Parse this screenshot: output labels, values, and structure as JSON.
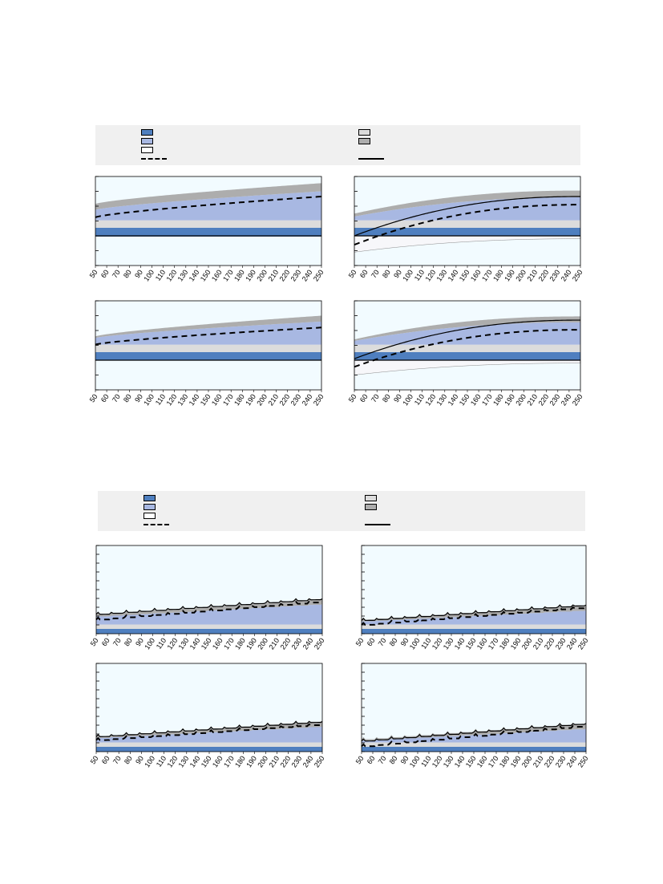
{
  "colors": {
    "plot_bg": "#f2fbff",
    "band_dark_blue": "#4f7fbf",
    "band_light_blue": "#a8b8e2",
    "band_light_gray": "#dcdcdc",
    "band_dark_gray": "#adadad",
    "band_white": "#f7f7fa",
    "legend_bg": "#f0f0f0"
  },
  "legends": [
    {
      "items": [
        {
          "swatch": "dark-blue",
          "label": ""
        },
        {
          "swatch": "light-blue",
          "label": ""
        },
        {
          "swatch": "white",
          "label": ""
        },
        {
          "swatch": "dashed-line",
          "label": ""
        },
        {
          "swatch": "light-gray",
          "label": ""
        },
        {
          "swatch": "dark-gray",
          "label": ""
        },
        {
          "swatch": "solid-line",
          "label": ""
        }
      ]
    },
    {
      "items": [
        {
          "swatch": "dark-blue",
          "label": ""
        },
        {
          "swatch": "light-blue",
          "label": ""
        },
        {
          "swatch": "white",
          "label": ""
        },
        {
          "swatch": "dashed-line",
          "label": ""
        },
        {
          "swatch": "light-gray",
          "label": ""
        },
        {
          "swatch": "dark-gray",
          "label": ""
        },
        {
          "swatch": "solid-line",
          "label": ""
        }
      ]
    }
  ],
  "chart_data": [
    {
      "type": "area",
      "panel": "top-left-1",
      "x_ticks": [
        50,
        60,
        70,
        80,
        90,
        100,
        110,
        120,
        130,
        140,
        150,
        160,
        170,
        180,
        190,
        200,
        210,
        220,
        230,
        240,
        250
      ],
      "xlim": [
        50,
        250
      ],
      "ylim": [
        -2,
        4
      ],
      "y_tick_step": 1,
      "zero_line": true,
      "style": "smooth",
      "series": [
        {
          "role": "dark-blue-band",
          "lower": [
            -0.05,
            -0.05
          ],
          "upper": [
            0.55,
            0.55
          ]
        },
        {
          "role": "light-gray-band",
          "lower": [
            0.55,
            0.55
          ],
          "upper": [
            1.05,
            1.05
          ]
        },
        {
          "role": "light-blue-band",
          "lower": [
            1.05,
            1.05
          ],
          "upper_start": 1.75,
          "upper_end": 3.0
        },
        {
          "role": "dark-gray-band",
          "lower_start": 1.75,
          "lower_end": 3.0,
          "upper_start": 2.15,
          "upper_end": 3.55
        },
        {
          "role": "dashed-line",
          "start": 1.25,
          "end": 2.65
        }
      ]
    },
    {
      "type": "area",
      "panel": "top-right-1",
      "x_ticks": [
        50,
        60,
        70,
        80,
        90,
        100,
        110,
        120,
        130,
        140,
        150,
        160,
        170,
        180,
        190,
        200,
        210,
        220,
        230,
        240,
        250
      ],
      "xlim": [
        50,
        250
      ],
      "ylim": [
        -2,
        4
      ],
      "y_tick_step": 1,
      "zero_line": true,
      "style": "smooth-right",
      "series": [
        {
          "role": "white-band",
          "lower_start": -1.1,
          "lower_end": -0.2,
          "upper": [
            0.0,
            0.0
          ]
        },
        {
          "role": "dark-blue-band",
          "lower": [
            0.0,
            0.0
          ],
          "upper_start": 0.55,
          "upper_end": 0.55
        },
        {
          "role": "light-gray-band",
          "lower": [
            0.55,
            0.55
          ],
          "upper": [
            1.05,
            1.05
          ]
        },
        {
          "role": "light-blue-band",
          "lower": [
            1.05,
            1.05
          ],
          "upper_start": 1.3,
          "upper_end": 2.6
        },
        {
          "role": "dark-gray-band",
          "lower_start": 1.3,
          "lower_end": 2.6,
          "upper_start": 1.5,
          "upper_end": 3.05
        },
        {
          "role": "solid-line",
          "start": 0.0,
          "end": 2.65
        },
        {
          "role": "dashed-line",
          "start": -0.6,
          "end": 2.1
        }
      ]
    },
    {
      "type": "area",
      "panel": "top-left-2",
      "x_ticks": [
        50,
        60,
        70,
        80,
        90,
        100,
        110,
        120,
        130,
        140,
        150,
        160,
        170,
        180,
        190,
        200,
        210,
        220,
        230,
        240,
        250
      ],
      "xlim": [
        50,
        250
      ],
      "ylim": [
        -2,
        4
      ],
      "y_tick_step": 1,
      "zero_line": true,
      "style": "smooth",
      "series": [
        {
          "role": "dark-blue-band",
          "lower": [
            0.0,
            0.0
          ],
          "upper": [
            0.55,
            0.55
          ]
        },
        {
          "role": "light-gray-band",
          "lower": [
            0.55,
            0.55
          ],
          "upper": [
            1.05,
            1.05
          ]
        },
        {
          "role": "light-blue-band",
          "lower": [
            1.05,
            1.05
          ],
          "upper_start": 1.5,
          "upper_end": 2.6
        },
        {
          "role": "dark-gray-band",
          "lower_start": 1.5,
          "lower_end": 2.6,
          "upper_start": 1.6,
          "upper_end": 3.0
        },
        {
          "role": "dashed-line",
          "start": 1.05,
          "end": 2.2
        }
      ]
    },
    {
      "type": "area",
      "panel": "top-right-2",
      "x_ticks": [
        50,
        60,
        70,
        80,
        90,
        100,
        110,
        120,
        130,
        140,
        150,
        160,
        170,
        180,
        190,
        200,
        210,
        220,
        230,
        240,
        250
      ],
      "xlim": [
        50,
        250
      ],
      "ylim": [
        -2,
        4
      ],
      "y_tick_step": 1,
      "zero_line": true,
      "style": "smooth-right",
      "series": [
        {
          "role": "white-band",
          "lower_start": -1.0,
          "lower_end": -0.2,
          "upper": [
            0.0,
            0.0
          ]
        },
        {
          "role": "dark-blue-band",
          "lower": [
            0.0,
            0.0
          ],
          "upper": [
            0.55,
            0.55
          ]
        },
        {
          "role": "light-gray-band",
          "lower": [
            0.55,
            0.55
          ],
          "upper": [
            1.05,
            1.05
          ]
        },
        {
          "role": "light-blue-band",
          "lower": [
            1.05,
            1.05
          ],
          "upper_start": 1.3,
          "upper_end": 2.55
        },
        {
          "role": "dark-gray-band",
          "lower_start": 1.3,
          "lower_end": 2.55,
          "upper_start": 1.4,
          "upper_end": 2.95
        },
        {
          "role": "solid-line",
          "start": 0.1,
          "end": 2.7
        },
        {
          "role": "dashed-line",
          "start": -0.45,
          "end": 2.05
        }
      ]
    },
    {
      "type": "area",
      "panel": "bottom-left-1",
      "x_ticks": [
        50,
        60,
        70,
        80,
        90,
        100,
        110,
        120,
        130,
        140,
        150,
        160,
        170,
        180,
        190,
        200,
        210,
        220,
        230,
        240,
        250
      ],
      "xlim": [
        50,
        250
      ],
      "ylim": [
        0,
        10
      ],
      "y_tick_step": 1,
      "zero_line": false,
      "style": "sawtooth",
      "series": [
        {
          "role": "dark-blue-band",
          "lower": [
            0.0,
            0.0
          ],
          "upper": [
            0.55,
            0.55
          ]
        },
        {
          "role": "light-gray-band",
          "lower": [
            0.55,
            0.55
          ],
          "upper": [
            1.05,
            1.05
          ]
        },
        {
          "role": "light-blue-band",
          "lower": [
            1.05,
            1.05
          ],
          "upper_start": 1.95,
          "upper_end": 3.35
        },
        {
          "role": "dark-gray-band",
          "lower_start": 1.95,
          "lower_end": 3.35,
          "upper_start": 2.25,
          "upper_end": 3.95
        },
        {
          "role": "dashed-line",
          "start": 1.6,
          "end": 3.65
        },
        {
          "role": "solid-line",
          "start": 2.2,
          "end": 3.95
        }
      ]
    },
    {
      "type": "area",
      "panel": "bottom-right-1",
      "x_ticks": [
        50,
        60,
        70,
        80,
        90,
        100,
        110,
        120,
        130,
        140,
        150,
        160,
        170,
        180,
        190,
        200,
        210,
        220,
        230,
        240,
        250
      ],
      "xlim": [
        50,
        250
      ],
      "ylim": [
        0,
        10
      ],
      "y_tick_step": 1,
      "zero_line": false,
      "style": "sawtooth",
      "series": [
        {
          "role": "dark-blue-band",
          "lower": [
            0.0,
            0.0
          ],
          "upper": [
            0.55,
            0.55
          ]
        },
        {
          "role": "light-gray-band",
          "lower": [
            0.55,
            0.55
          ],
          "upper": [
            1.05,
            1.05
          ]
        },
        {
          "role": "light-blue-band",
          "lower": [
            1.05,
            1.05
          ],
          "upper_start": 1.4,
          "upper_end": 2.65
        },
        {
          "role": "dark-gray-band",
          "lower_start": 1.4,
          "lower_end": 2.65,
          "upper_start": 1.6,
          "upper_end": 3.3
        },
        {
          "role": "dashed-line",
          "start": 1.0,
          "end": 3.0
        },
        {
          "role": "solid-line",
          "start": 1.5,
          "end": 3.25
        }
      ]
    },
    {
      "type": "area",
      "panel": "bottom-left-2",
      "x_ticks": [
        50,
        60,
        70,
        80,
        90,
        100,
        110,
        120,
        130,
        140,
        150,
        160,
        170,
        180,
        190,
        200,
        210,
        220,
        230,
        240,
        250
      ],
      "xlim": [
        50,
        250
      ],
      "ylim": [
        0,
        10
      ],
      "y_tick_step": 1,
      "zero_line": false,
      "style": "sawtooth",
      "series": [
        {
          "role": "dark-blue-band",
          "lower": [
            0.0,
            0.0
          ],
          "upper": [
            0.55,
            0.55
          ]
        },
        {
          "role": "light-gray-band",
          "lower": [
            0.55,
            0.55
          ],
          "upper": [
            1.05,
            1.05
          ]
        },
        {
          "role": "light-blue-band",
          "lower": [
            1.05,
            1.05
          ],
          "upper_start": 1.55,
          "upper_end": 2.85
        },
        {
          "role": "dark-gray-band",
          "lower_start": 1.55,
          "lower_end": 2.85,
          "upper_start": 1.75,
          "upper_end": 3.5
        },
        {
          "role": "dashed-line",
          "start": 1.3,
          "end": 3.1
        },
        {
          "role": "solid-line",
          "start": 1.7,
          "end": 3.4
        }
      ]
    },
    {
      "type": "area",
      "panel": "bottom-right-2",
      "x_ticks": [
        50,
        60,
        70,
        80,
        90,
        100,
        110,
        120,
        130,
        140,
        150,
        160,
        170,
        180,
        190,
        200,
        210,
        220,
        230,
        240,
        250
      ],
      "xlim": [
        50,
        250
      ],
      "ylim": [
        0,
        10
      ],
      "y_tick_step": 1,
      "zero_line": false,
      "style": "sawtooth",
      "series": [
        {
          "role": "dark-blue-band",
          "lower": [
            0.0,
            0.0
          ],
          "upper": [
            0.55,
            0.55
          ]
        },
        {
          "role": "light-gray-band",
          "lower": [
            0.55,
            0.55
          ],
          "upper": [
            1.05,
            1.05
          ]
        },
        {
          "role": "light-blue-band",
          "lower": [
            1.05,
            1.05
          ],
          "upper_start": 1.25,
          "upper_end": 2.6
        },
        {
          "role": "dark-gray-band",
          "lower_start": 1.25,
          "lower_end": 2.6,
          "upper_start": 1.4,
          "upper_end": 3.25
        },
        {
          "role": "dashed-line",
          "start": 0.6,
          "end": 2.95
        },
        {
          "role": "solid-line",
          "start": 1.2,
          "end": 3.2
        }
      ]
    }
  ]
}
